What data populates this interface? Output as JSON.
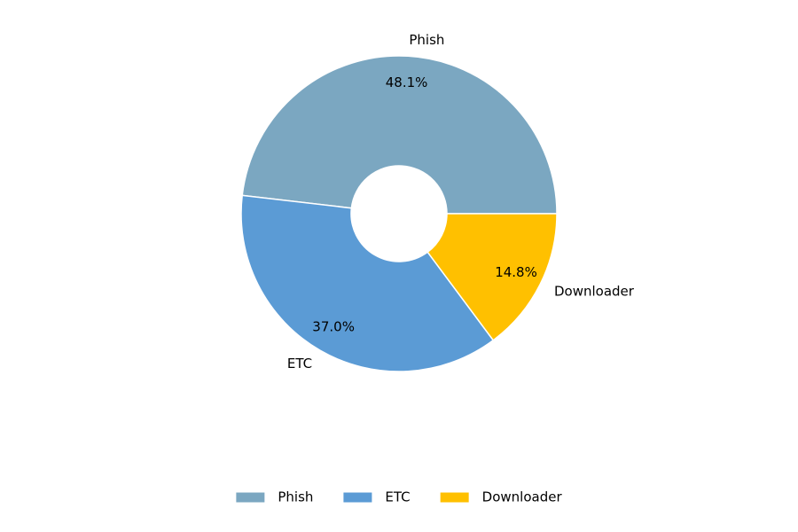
{
  "chart_data": {
    "type": "donut",
    "categories": [
      "Phish",
      "ETC",
      "Downloader"
    ],
    "values": [
      48.1,
      37.0,
      14.8
    ],
    "value_labels": [
      "48.1%",
      "37.0%",
      "14.8%"
    ],
    "colors": [
      "#7ba7c1",
      "#5b9bd5",
      "#ffc000"
    ],
    "legend": "bottom"
  }
}
